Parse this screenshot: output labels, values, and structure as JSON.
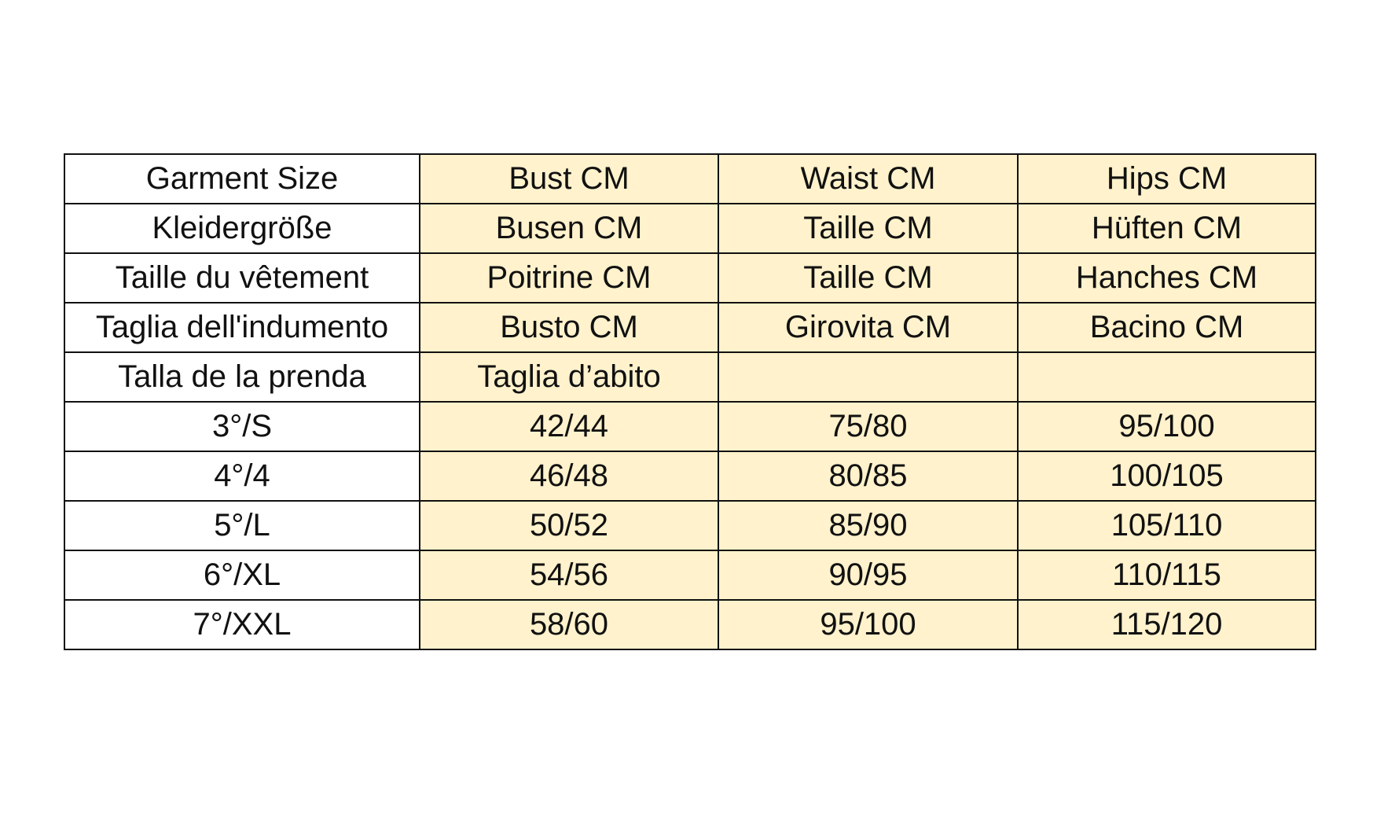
{
  "table": {
    "rows": [
      [
        "Garment Size",
        "Bust CM",
        "Waist CM",
        "Hips CM"
      ],
      [
        "Kleidergröße",
        "Busen CM",
        "Taille CM",
        "Hüften CM"
      ],
      [
        "Taille du vêtement",
        "Poitrine CM",
        "Taille CM",
        "Hanches CM"
      ],
      [
        "Taglia dell'indumento",
        "Busto CM",
        "Girovita CM",
        "Bacino CM"
      ],
      [
        "Talla de la prenda",
        "Taglia d’abito",
        null,
        null
      ],
      [
        "3°/S",
        "42/44",
        "75/80",
        "95/100"
      ],
      [
        "4°/4",
        "46/48",
        "80/85",
        "100/105"
      ],
      [
        "5°/L",
        "50/52",
        "85/90",
        "105/110"
      ],
      [
        "6°/XL",
        "54/56",
        "90/95",
        "110/115"
      ],
      [
        "7°/XXL",
        "58/60",
        "95/100",
        "115/120"
      ]
    ]
  }
}
